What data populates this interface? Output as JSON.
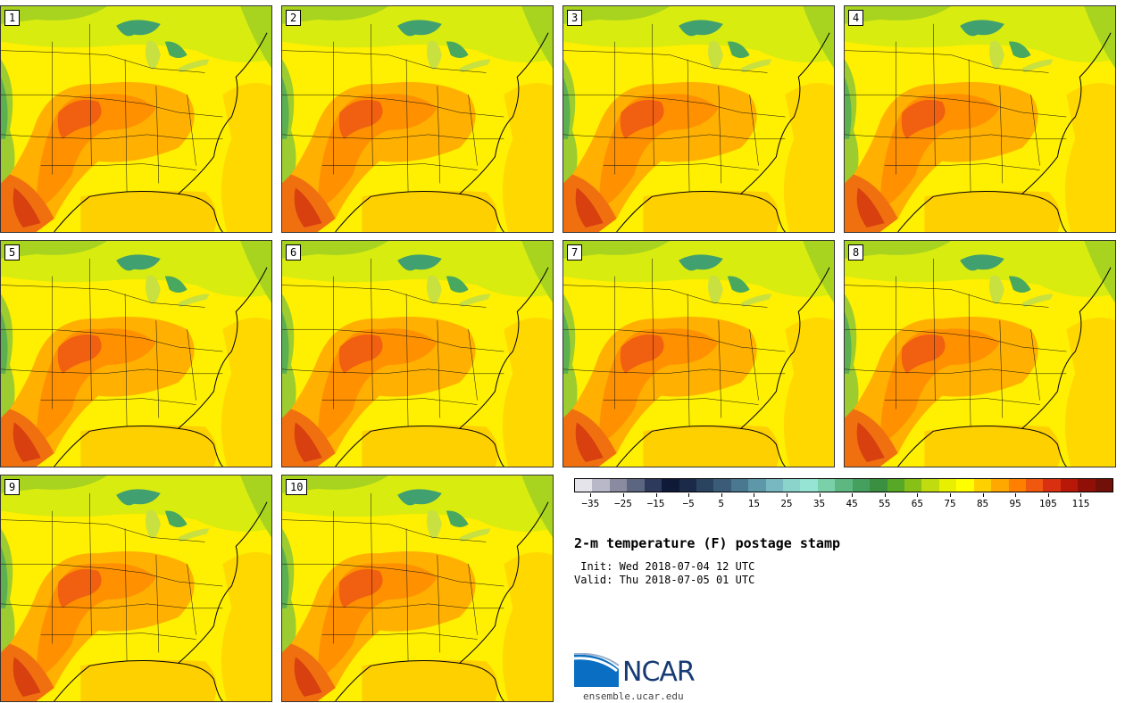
{
  "figure": {
    "title": "2-m temperature (F) postage stamp",
    "init": " Init: Wed 2018-07-04 12 UTC",
    "valid": "Valid: Thu 2018-07-05 01 UTC",
    "site": "ensemble.ucar.edu",
    "logo_text": "NCAR"
  },
  "panels": [
    {
      "label": "1"
    },
    {
      "label": "2"
    },
    {
      "label": "3"
    },
    {
      "label": "4"
    },
    {
      "label": "5"
    },
    {
      "label": "6"
    },
    {
      "label": "7"
    },
    {
      "label": "8"
    },
    {
      "label": "9"
    },
    {
      "label": "10"
    }
  ],
  "colorbar": {
    "tick_labels": [
      "−35",
      "−25",
      "−15",
      "−5",
      "5",
      "15",
      "25",
      "35",
      "45",
      "55",
      "65",
      "75",
      "85",
      "95",
      "105",
      "115"
    ],
    "colors": [
      "#e4e4ea",
      "#b8b8c8",
      "#8a8aa0",
      "#5c6680",
      "#2e3a5c",
      "#0f1a38",
      "#1a2a48",
      "#2a4460",
      "#3a5c78",
      "#4a7890",
      "#5e98a8",
      "#78b8c0",
      "#8ad4cc",
      "#96e4d4",
      "#7ad0a8",
      "#5cb880",
      "#45a060",
      "#3a9040",
      "#58a828",
      "#88c018",
      "#c0dc10",
      "#e8f000",
      "#ffff00",
      "#ffd000",
      "#ffa800",
      "#ff8000",
      "#f05810",
      "#d83010",
      "#b81808",
      "#901008",
      "#701008"
    ],
    "vmin": -40,
    "vmax": 125
  }
}
